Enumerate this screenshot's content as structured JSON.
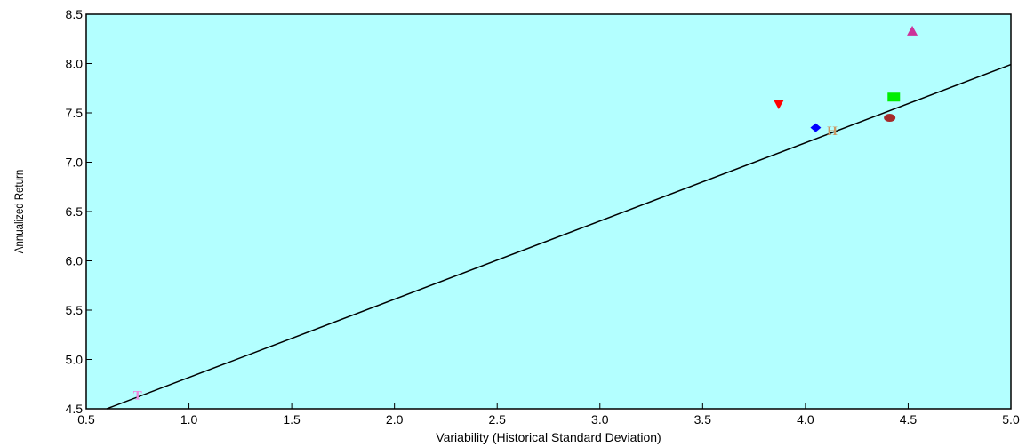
{
  "chart_data": {
    "type": "scatter",
    "title": "",
    "xlabel": "Variability (Historical Standard Deviation)",
    "ylabel": "Annualized Return",
    "xlim": [
      0.5,
      5.0
    ],
    "ylim": [
      4.5,
      8.5
    ],
    "x_ticks": [
      "0.5",
      "1.0",
      "1.5",
      "2.0",
      "2.5",
      "3.0",
      "3.5",
      "4.0",
      "4.5",
      "5.0"
    ],
    "y_ticks": [
      "4.5",
      "5.0",
      "5.5",
      "6.0",
      "6.5",
      "7.0",
      "7.5",
      "8.0",
      "8.5"
    ],
    "grid": false,
    "background": "#b3ffff",
    "points": [
      {
        "x": 4.52,
        "y": 8.33,
        "marker": "triangle-up",
        "color": "#cc3399"
      },
      {
        "x": 4.43,
        "y": 7.66,
        "marker": "square",
        "color": "#00ee00"
      },
      {
        "x": 3.87,
        "y": 7.59,
        "marker": "triangle-down",
        "color": "#ff0000"
      },
      {
        "x": 4.41,
        "y": 7.45,
        "marker": "ellipse",
        "color": "#a52a2a"
      },
      {
        "x": 4.05,
        "y": 7.35,
        "marker": "diamond",
        "color": "#0000ff"
      },
      {
        "x": 4.13,
        "y": 7.32,
        "marker": "letter",
        "text": "H",
        "color": "#cc9966"
      },
      {
        "x": 0.75,
        "y": 4.64,
        "marker": "letter",
        "text": "T",
        "color": "#ee88dd"
      }
    ],
    "line": {
      "x": [
        0.6,
        5.0
      ],
      "y": [
        4.5,
        7.99
      ],
      "color": "#000000"
    }
  }
}
